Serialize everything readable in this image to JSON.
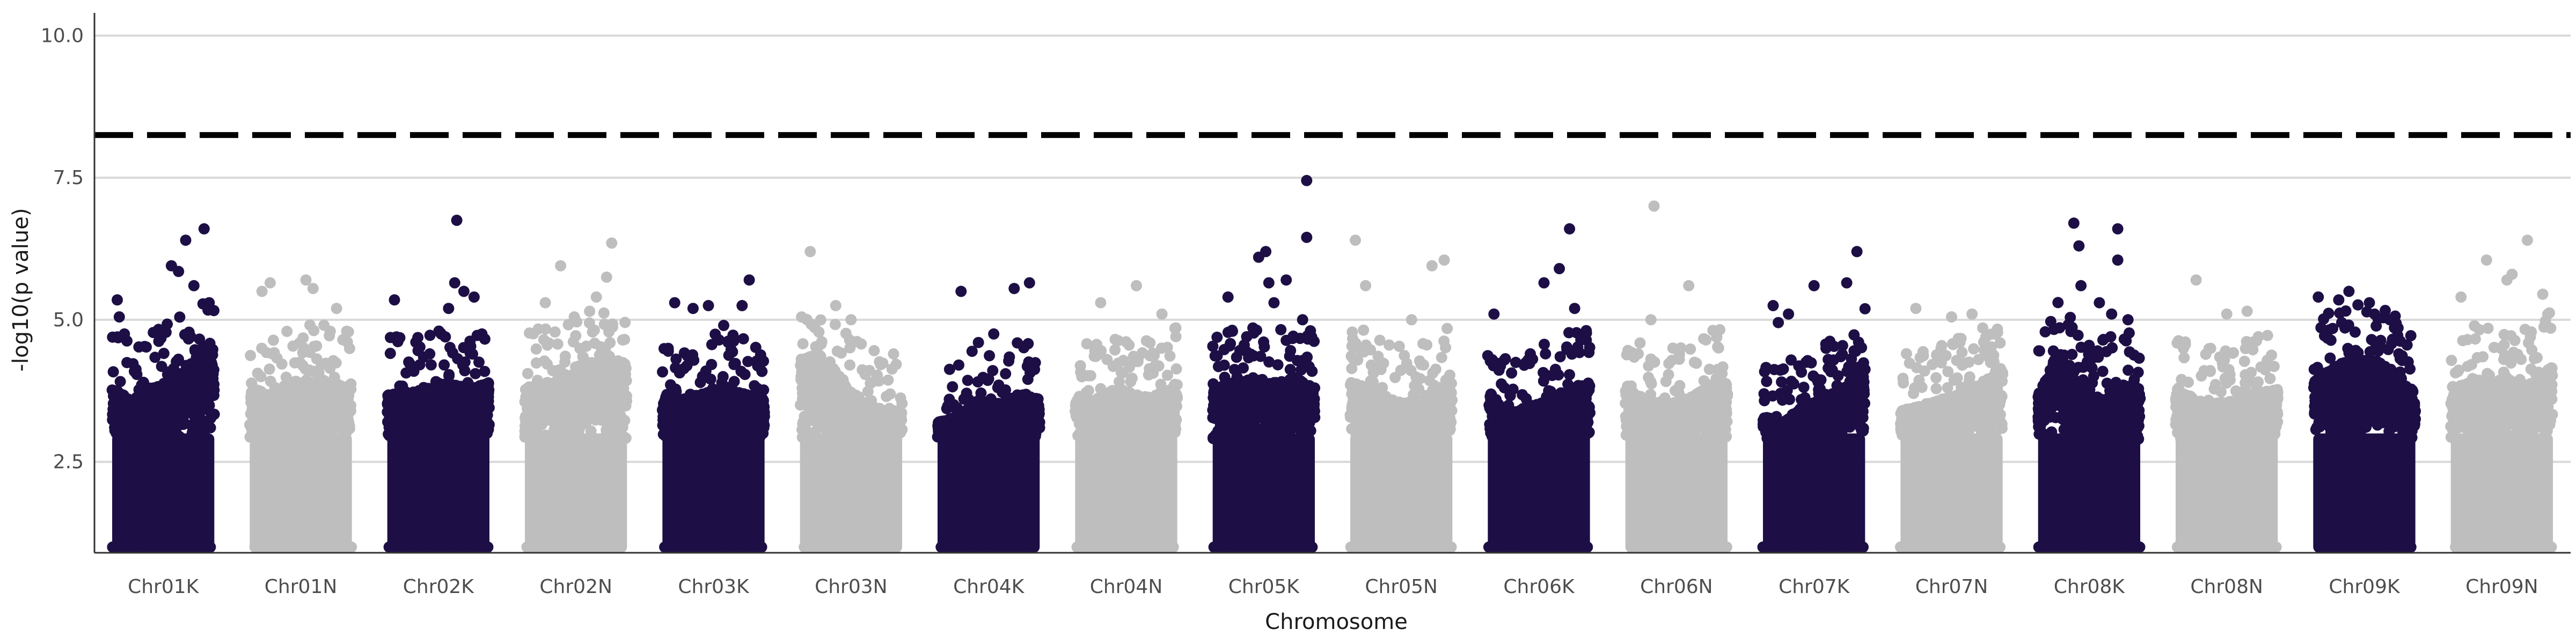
{
  "chart_data": {
    "type": "scatter",
    "title": "",
    "xlabel": "Chromosome",
    "ylabel": "-log10(p value)",
    "ylim": [
      0.9,
      10.4
    ],
    "y_ticks": [
      2.5,
      5.0,
      7.5,
      10.0
    ],
    "y_tick_labels": [
      "2.5",
      "5.0",
      "7.5",
      "10.0"
    ],
    "grid": "horizontal",
    "legend": "none",
    "significance_threshold": 8.25,
    "colors": {
      "odd": "#1d0f45",
      "even": "#bebebe",
      "threshold": "#000000",
      "grid": "#d9d9d9",
      "axis": "#333333"
    },
    "categories": [
      "Chr01K",
      "Chr01N",
      "Chr02K",
      "Chr02N",
      "Chr03K",
      "Chr03N",
      "Chr04K",
      "Chr04N",
      "Chr05K",
      "Chr05N",
      "Chr06K",
      "Chr06N",
      "Chr07K",
      "Chr07N",
      "Chr08K",
      "Chr08N",
      "Chr09K",
      "Chr09N"
    ],
    "base_levels": [
      [
        3.8,
        3.6,
        3.8,
        4.0,
        4.2,
        4.5
      ],
      [
        3.8,
        3.7,
        3.9,
        4.0,
        3.9,
        3.8
      ],
      [
        3.7,
        3.7,
        3.8,
        3.9,
        3.8,
        3.9
      ],
      [
        3.8,
        3.9,
        4.0,
        4.2,
        4.4,
        4.3
      ],
      [
        3.6,
        3.6,
        3.7,
        3.8,
        3.7,
        3.6
      ],
      [
        4.3,
        4.4,
        4.0,
        3.6,
        3.4,
        3.4
      ],
      [
        3.2,
        3.3,
        3.6,
        3.5,
        3.7,
        3.6
      ],
      [
        3.6,
        3.6,
        3.8,
        3.7,
        3.6,
        3.9
      ],
      [
        3.8,
        3.9,
        4.0,
        3.9,
        4.0,
        3.8
      ],
      [
        3.9,
        3.8,
        3.6,
        3.5,
        3.7,
        3.9
      ],
      [
        3.8,
        3.3,
        3.5,
        3.6,
        3.8,
        3.9
      ],
      [
        3.8,
        3.6,
        3.5,
        3.6,
        3.8,
        3.9
      ],
      [
        3.3,
        3.2,
        3.5,
        3.6,
        3.8,
        4.3
      ],
      [
        3.4,
        3.5,
        3.6,
        3.7,
        3.9,
        4.2
      ],
      [
        3.7,
        4.5,
        3.8,
        3.6,
        3.9,
        3.7
      ],
      [
        3.8,
        3.6,
        3.5,
        3.6,
        3.7,
        3.8
      ],
      [
        3.9,
        4.2,
        4.3,
        4.3,
        4.1,
        3.7
      ],
      [
        3.7,
        4.0,
        3.9,
        3.8,
        3.9,
        4.2
      ]
    ],
    "peaks": [
      {
        "chr": "Chr01K",
        "pos": 0.05,
        "y": 5.35
      },
      {
        "chr": "Chr01K",
        "pos": 0.07,
        "y": 5.05
      },
      {
        "chr": "Chr01K",
        "pos": 0.12,
        "y": 4.75
      },
      {
        "chr": "Chr01K",
        "pos": 0.58,
        "y": 5.95
      },
      {
        "chr": "Chr01K",
        "pos": 0.65,
        "y": 5.85
      },
      {
        "chr": "Chr01K",
        "pos": 0.72,
        "y": 6.4
      },
      {
        "chr": "Chr01K",
        "pos": 0.8,
        "y": 5.6
      },
      {
        "chr": "Chr01K",
        "pos": 0.9,
        "y": 6.6
      },
      {
        "chr": "Chr01K",
        "pos": 0.95,
        "y": 5.3
      },
      {
        "chr": "Chr01N",
        "pos": 0.12,
        "y": 5.5
      },
      {
        "chr": "Chr01N",
        "pos": 0.2,
        "y": 5.65
      },
      {
        "chr": "Chr01N",
        "pos": 0.55,
        "y": 5.7
      },
      {
        "chr": "Chr01N",
        "pos": 0.62,
        "y": 5.55
      },
      {
        "chr": "Chr01N",
        "pos": 0.85,
        "y": 5.2
      },
      {
        "chr": "Chr02K",
        "pos": 0.07,
        "y": 5.35
      },
      {
        "chr": "Chr02K",
        "pos": 0.6,
        "y": 5.2
      },
      {
        "chr": "Chr02K",
        "pos": 0.66,
        "y": 5.65
      },
      {
        "chr": "Chr02K",
        "pos": 0.68,
        "y": 6.75
      },
      {
        "chr": "Chr02K",
        "pos": 0.75,
        "y": 5.5
      },
      {
        "chr": "Chr02K",
        "pos": 0.85,
        "y": 5.4
      },
      {
        "chr": "Chr02N",
        "pos": 0.35,
        "y": 5.95
      },
      {
        "chr": "Chr02N",
        "pos": 0.2,
        "y": 5.3
      },
      {
        "chr": "Chr02N",
        "pos": 0.8,
        "y": 5.75
      },
      {
        "chr": "Chr02N",
        "pos": 0.85,
        "y": 6.35
      },
      {
        "chr": "Chr02N",
        "pos": 0.7,
        "y": 5.4
      },
      {
        "chr": "Chr03K",
        "pos": 0.12,
        "y": 5.3
      },
      {
        "chr": "Chr03K",
        "pos": 0.3,
        "y": 5.2
      },
      {
        "chr": "Chr03K",
        "pos": 0.45,
        "y": 5.25
      },
      {
        "chr": "Chr03K",
        "pos": 0.78,
        "y": 5.25
      },
      {
        "chr": "Chr03K",
        "pos": 0.85,
        "y": 5.7
      },
      {
        "chr": "Chr03K",
        "pos": 0.6,
        "y": 4.9
      },
      {
        "chr": "Chr03N",
        "pos": 0.1,
        "y": 6.2
      },
      {
        "chr": "Chr03N",
        "pos": 0.35,
        "y": 5.25
      },
      {
        "chr": "Chr03N",
        "pos": 0.5,
        "y": 5.0
      },
      {
        "chr": "Chr04K",
        "pos": 0.23,
        "y": 5.5
      },
      {
        "chr": "Chr04K",
        "pos": 0.75,
        "y": 5.55
      },
      {
        "chr": "Chr04K",
        "pos": 0.9,
        "y": 5.65
      },
      {
        "chr": "Chr04K",
        "pos": 0.55,
        "y": 4.75
      },
      {
        "chr": "Chr04K",
        "pos": 0.4,
        "y": 4.6
      },
      {
        "chr": "Chr04N",
        "pos": 0.25,
        "y": 5.3
      },
      {
        "chr": "Chr04N",
        "pos": 0.6,
        "y": 5.6
      },
      {
        "chr": "Chr04N",
        "pos": 0.85,
        "y": 5.1
      },
      {
        "chr": "Chr05K",
        "pos": 0.15,
        "y": 5.4
      },
      {
        "chr": "Chr05K",
        "pos": 0.45,
        "y": 6.1
      },
      {
        "chr": "Chr05K",
        "pos": 0.52,
        "y": 6.2
      },
      {
        "chr": "Chr05K",
        "pos": 0.55,
        "y": 5.65
      },
      {
        "chr": "Chr05K",
        "pos": 0.6,
        "y": 5.3
      },
      {
        "chr": "Chr05K",
        "pos": 0.72,
        "y": 5.7
      },
      {
        "chr": "Chr05K",
        "pos": 0.92,
        "y": 7.45
      },
      {
        "chr": "Chr05K",
        "pos": 0.92,
        "y": 6.45
      },
      {
        "chr": "Chr05K",
        "pos": 0.88,
        "y": 5.0
      },
      {
        "chr": "Chr05N",
        "pos": 0.05,
        "y": 6.4
      },
      {
        "chr": "Chr05N",
        "pos": 0.15,
        "y": 5.6
      },
      {
        "chr": "Chr05N",
        "pos": 0.8,
        "y": 5.95
      },
      {
        "chr": "Chr05N",
        "pos": 0.92,
        "y": 6.05
      },
      {
        "chr": "Chr05N",
        "pos": 0.6,
        "y": 5.0
      },
      {
        "chr": "Chr06K",
        "pos": 0.06,
        "y": 5.1
      },
      {
        "chr": "Chr06K",
        "pos": 0.55,
        "y": 5.65
      },
      {
        "chr": "Chr06K",
        "pos": 0.7,
        "y": 5.9
      },
      {
        "chr": "Chr06K",
        "pos": 0.8,
        "y": 6.6
      },
      {
        "chr": "Chr06K",
        "pos": 0.85,
        "y": 5.2
      },
      {
        "chr": "Chr06N",
        "pos": 0.28,
        "y": 7.0
      },
      {
        "chr": "Chr06N",
        "pos": 0.25,
        "y": 5.0
      },
      {
        "chr": "Chr06N",
        "pos": 0.62,
        "y": 5.6
      },
      {
        "chr": "Chr07K",
        "pos": 0.1,
        "y": 5.25
      },
      {
        "chr": "Chr07K",
        "pos": 0.15,
        "y": 4.95
      },
      {
        "chr": "Chr07K",
        "pos": 0.5,
        "y": 5.6
      },
      {
        "chr": "Chr07K",
        "pos": 0.82,
        "y": 5.65
      },
      {
        "chr": "Chr07K",
        "pos": 0.92,
        "y": 6.2
      },
      {
        "chr": "Chr07K",
        "pos": 0.25,
        "y": 5.1
      },
      {
        "chr": "Chr07N",
        "pos": 0.15,
        "y": 5.2
      },
      {
        "chr": "Chr07N",
        "pos": 0.5,
        "y": 5.05
      },
      {
        "chr": "Chr07N",
        "pos": 0.7,
        "y": 5.1
      },
      {
        "chr": "Chr08K",
        "pos": 0.35,
        "y": 6.7
      },
      {
        "chr": "Chr08K",
        "pos": 0.4,
        "y": 6.3
      },
      {
        "chr": "Chr08K",
        "pos": 0.42,
        "y": 5.6
      },
      {
        "chr": "Chr08K",
        "pos": 0.6,
        "y": 5.3
      },
      {
        "chr": "Chr08K",
        "pos": 0.72,
        "y": 5.1
      },
      {
        "chr": "Chr08K",
        "pos": 0.78,
        "y": 6.6
      },
      {
        "chr": "Chr08K",
        "pos": 0.78,
        "y": 6.05
      },
      {
        "chr": "Chr08K",
        "pos": 0.88,
        "y": 5.0
      },
      {
        "chr": "Chr08N",
        "pos": 0.2,
        "y": 5.7
      },
      {
        "chr": "Chr08N",
        "pos": 0.5,
        "y": 5.1
      },
      {
        "chr": "Chr08N",
        "pos": 0.7,
        "y": 5.15
      },
      {
        "chr": "Chr09K",
        "pos": 0.05,
        "y": 5.4
      },
      {
        "chr": "Chr09K",
        "pos": 0.25,
        "y": 5.35
      },
      {
        "chr": "Chr09K",
        "pos": 0.35,
        "y": 5.5
      },
      {
        "chr": "Chr09K",
        "pos": 0.55,
        "y": 5.3
      },
      {
        "chr": "Chr09K",
        "pos": 0.6,
        "y": 5.1
      },
      {
        "chr": "Chr09K",
        "pos": 0.75,
        "y": 5.0
      },
      {
        "chr": "Chr09N",
        "pos": 0.1,
        "y": 5.4
      },
      {
        "chr": "Chr09N",
        "pos": 0.35,
        "y": 6.05
      },
      {
        "chr": "Chr09N",
        "pos": 0.55,
        "y": 5.7
      },
      {
        "chr": "Chr09N",
        "pos": 0.6,
        "y": 5.8
      },
      {
        "chr": "Chr09N",
        "pos": 0.75,
        "y": 6.4
      },
      {
        "chr": "Chr09N",
        "pos": 0.9,
        "y": 5.45
      }
    ]
  }
}
